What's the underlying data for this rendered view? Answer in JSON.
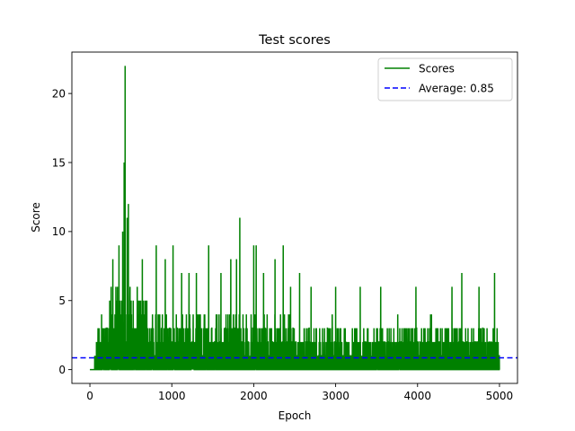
{
  "chart_data": {
    "type": "line",
    "title": "Test scores",
    "xlabel": "Epoch",
    "ylabel": "Score",
    "xlim": [
      -220,
      5220
    ],
    "ylim": [
      -1.0,
      23.0
    ],
    "xticks": [
      0,
      1000,
      2000,
      3000,
      4000,
      5000
    ],
    "yticks": [
      0,
      5,
      10,
      15,
      20
    ],
    "x_range": [
      0,
      4999
    ],
    "grid": false,
    "legend_position": "top-right",
    "series": [
      {
        "name": "Scores",
        "color": "#008000",
        "style": "solid",
        "peaks": [
          {
            "x": 430,
            "y": 22
          },
          {
            "x": 418,
            "y": 15
          },
          {
            "x": 470,
            "y": 12
          },
          {
            "x": 455,
            "y": 11
          },
          {
            "x": 400,
            "y": 10
          },
          {
            "x": 355,
            "y": 9
          },
          {
            "x": 1830,
            "y": 11
          },
          {
            "x": 2000,
            "y": 9
          },
          {
            "x": 2030,
            "y": 9
          },
          {
            "x": 2360,
            "y": 9
          },
          {
            "x": 810,
            "y": 9
          },
          {
            "x": 1015,
            "y": 9
          },
          {
            "x": 1450,
            "y": 9
          },
          {
            "x": 1790,
            "y": 8
          },
          {
            "x": 1720,
            "y": 8
          },
          {
            "x": 2260,
            "y": 8
          },
          {
            "x": 280,
            "y": 8
          },
          {
            "x": 640,
            "y": 8
          },
          {
            "x": 920,
            "y": 8
          },
          {
            "x": 1120,
            "y": 7
          },
          {
            "x": 1210,
            "y": 7
          },
          {
            "x": 1300,
            "y": 7
          },
          {
            "x": 1600,
            "y": 7
          },
          {
            "x": 2120,
            "y": 7
          },
          {
            "x": 2560,
            "y": 7
          },
          {
            "x": 4540,
            "y": 7
          },
          {
            "x": 4940,
            "y": 7
          },
          {
            "x": 2450,
            "y": 6
          },
          {
            "x": 2700,
            "y": 6
          },
          {
            "x": 3000,
            "y": 6
          },
          {
            "x": 3300,
            "y": 6
          },
          {
            "x": 3550,
            "y": 6
          },
          {
            "x": 3980,
            "y": 6
          },
          {
            "x": 4420,
            "y": 6
          },
          {
            "x": 4750,
            "y": 6
          }
        ]
      },
      {
        "name": "Average: 0.85",
        "color": "#0000ff",
        "style": "dashed",
        "value": 0.85
      }
    ]
  }
}
